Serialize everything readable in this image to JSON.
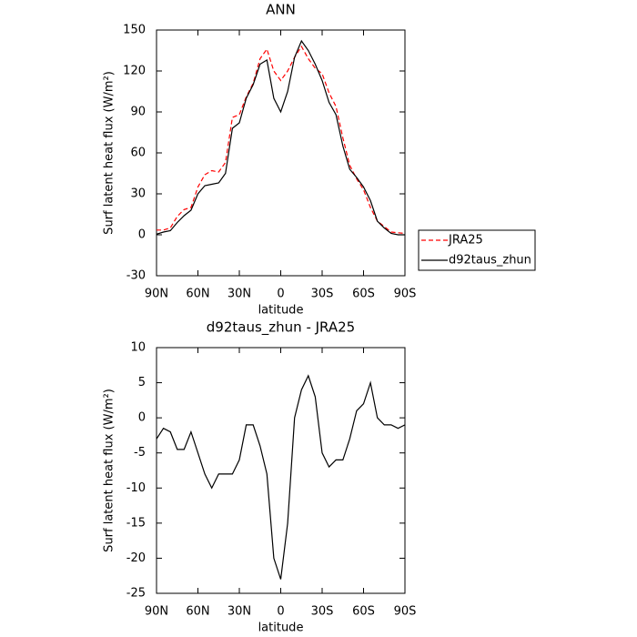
{
  "chart_data": [
    {
      "type": "line",
      "title": "ANN",
      "xlabel": "latitude",
      "ylabel": "Surf latent heat flux (W/m²)",
      "x": [
        90,
        85,
        80,
        75,
        70,
        65,
        60,
        55,
        50,
        45,
        40,
        35,
        30,
        25,
        20,
        15,
        10,
        5,
        0,
        -5,
        -10,
        -15,
        -20,
        -25,
        -30,
        -35,
        -40,
        -45,
        -50,
        -55,
        -60,
        -65,
        -70,
        -75,
        -80,
        -85,
        -90
      ],
      "series": [
        {
          "name": "JRA25",
          "color": "#ff0000",
          "dash": "dashed",
          "values": [
            3.5,
            3.5,
            5,
            13.5,
            18.5,
            20,
            35,
            44,
            47,
            46,
            53,
            86,
            88,
            101,
            111,
            129,
            136,
            120,
            113,
            120,
            130,
            138,
            129,
            122,
            118,
            104,
            94,
            71,
            51,
            41,
            33,
            20,
            10,
            6,
            2,
            1.5,
            1
          ]
        },
        {
          "name": "d92taus_zhun",
          "color": "#000000",
          "dash": "solid",
          "values": [
            0.5,
            2,
            3,
            9,
            14,
            18,
            30,
            36,
            37,
            38,
            45,
            78,
            82,
            100,
            110,
            125,
            128,
            100,
            90,
            105,
            130,
            142,
            135,
            125,
            113,
            97,
            88,
            65,
            48,
            42,
            35,
            25,
            10,
            5,
            1,
            0,
            0
          ]
        }
      ],
      "xlim": [
        90,
        -90
      ],
      "xticks": [
        {
          "value": 90,
          "label": "90N"
        },
        {
          "value": 60,
          "label": "60N"
        },
        {
          "value": 30,
          "label": "30N"
        },
        0,
        {
          "value": -30,
          "label": "30S"
        },
        {
          "value": -60,
          "label": "60S"
        },
        {
          "value": -90,
          "label": "90S"
        }
      ],
      "ylim": [
        -30,
        150
      ],
      "yticks": [
        -30,
        0,
        30,
        60,
        90,
        120,
        150
      ],
      "legend": "outside right"
    },
    {
      "type": "line",
      "title": "d92taus_zhun - JRA25",
      "xlabel": "latitude",
      "ylabel": "Surf latent heat flux (W/m²)",
      "x": [
        90,
        85,
        80,
        75,
        70,
        65,
        60,
        55,
        50,
        45,
        40,
        35,
        30,
        25,
        20,
        15,
        10,
        5,
        0,
        -5,
        -10,
        -15,
        -20,
        -25,
        -30,
        -35,
        -40,
        -45,
        -50,
        -55,
        -60,
        -65,
        -70,
        -75,
        -80,
        -85,
        -90
      ],
      "values": [
        -3,
        -1.5,
        -2,
        -4.5,
        -4.5,
        -2,
        -5,
        -8,
        -10,
        -8,
        -8,
        -8,
        -6,
        -1,
        -1,
        -4,
        -8,
        -20,
        -23,
        -15,
        0,
        4,
        6,
        3,
        -5,
        -7,
        -6,
        -6,
        -3,
        1,
        2,
        5,
        0,
        -1,
        -1,
        -1.5,
        -1
      ],
      "color": "#000000",
      "xlim": [
        90,
        -90
      ],
      "xticks": [
        {
          "value": 90,
          "label": "90N"
        },
        {
          "value": 60,
          "label": "60N"
        },
        {
          "value": 30,
          "label": "30N"
        },
        0,
        {
          "value": -30,
          "label": "30S"
        },
        {
          "value": -60,
          "label": "60S"
        },
        {
          "value": -90,
          "label": "90S"
        }
      ],
      "ylim": [
        -25,
        10
      ],
      "yticks": [
        -25,
        -20,
        -15,
        -10,
        -5,
        0,
        5,
        10
      ]
    }
  ]
}
